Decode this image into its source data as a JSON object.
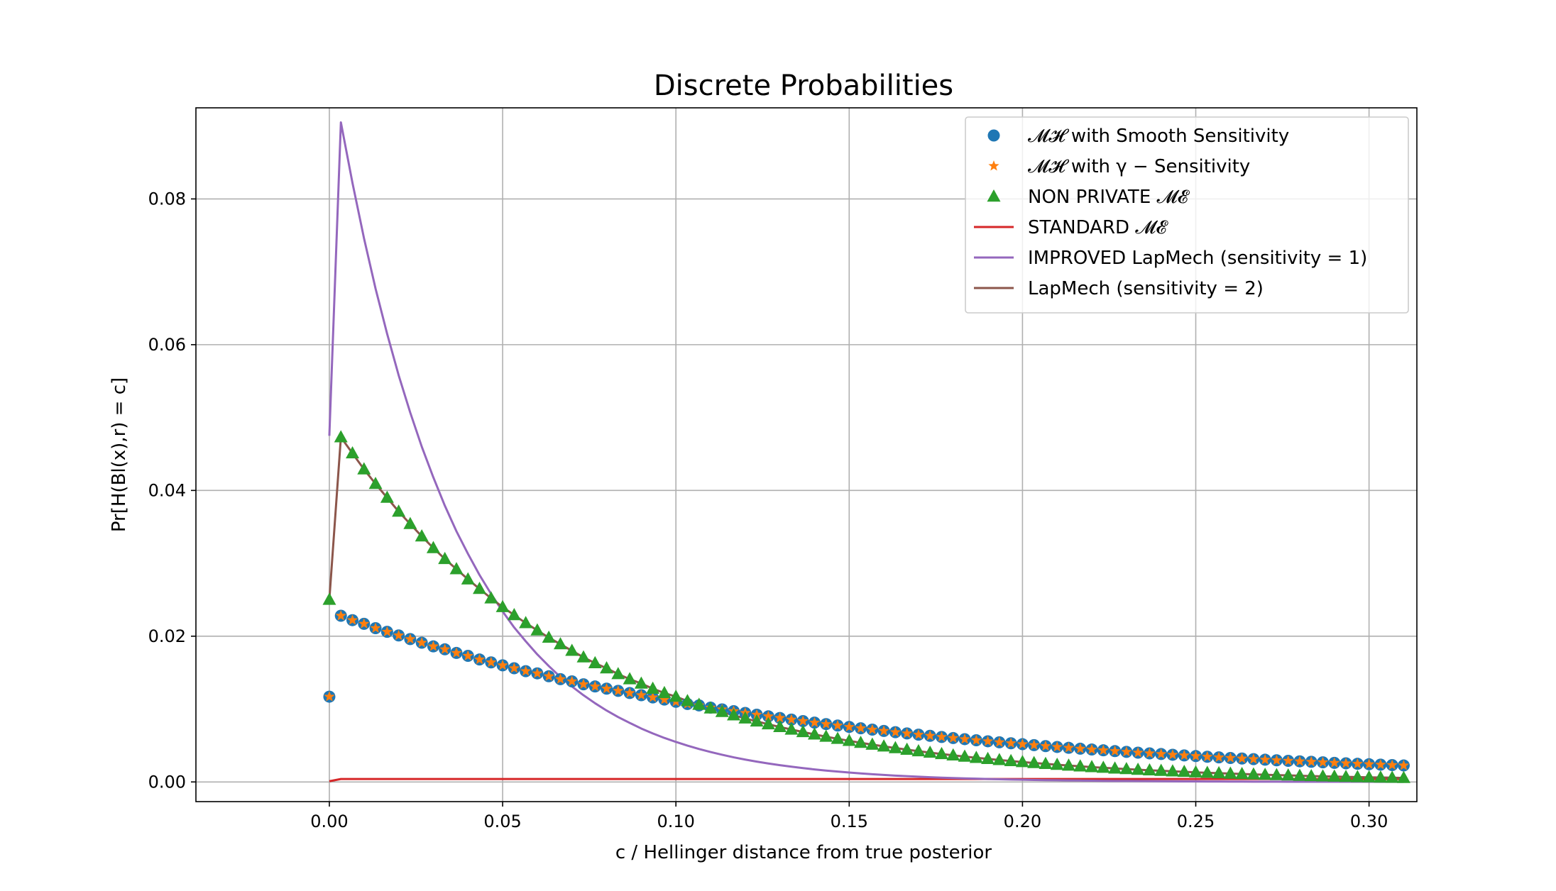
{
  "chart_data": {
    "type": "line",
    "title": "Discrete Probabilities",
    "xlabel": "c / Hellinger distance from true posterior",
    "ylabel": "Pr[H(Bl(x),r) = c]",
    "xlim": [
      -0.0385,
      0.3138
    ],
    "ylim": [
      -0.0027,
      0.0925
    ],
    "xticks": [
      0.0,
      0.05,
      0.1,
      0.15,
      0.2,
      0.25,
      0.3
    ],
    "xtick_labels": [
      "0.00",
      "0.05",
      "0.10",
      "0.15",
      "0.20",
      "0.25",
      "0.30"
    ],
    "yticks": [
      0.0,
      0.02,
      0.04,
      0.06,
      0.08
    ],
    "ytick_labels": [
      "0.00",
      "0.02",
      "0.04",
      "0.06",
      "0.08"
    ],
    "grid": true,
    "legend_position": "top-right",
    "series": [
      {
        "name": "𝓜𝓗 with Smooth Sensitivity",
        "marker": "circle",
        "color": "#1f77b4",
        "x": [
          0.0,
          0.00333,
          0.00667,
          0.01,
          0.01333,
          0.01667,
          0.02,
          0.02333,
          0.02667,
          0.03,
          0.03333,
          0.03667,
          0.04,
          0.04333,
          0.04667,
          0.05,
          0.05333,
          0.05667,
          0.06,
          0.06333,
          0.06667,
          0.07,
          0.07333,
          0.07667,
          0.08,
          0.08333,
          0.08667,
          0.09,
          0.09333,
          0.09667,
          0.1,
          0.10333,
          0.10667,
          0.11,
          0.11333,
          0.11667,
          0.12,
          0.12333,
          0.12667,
          0.13,
          0.13333,
          0.13667,
          0.14,
          0.14333,
          0.14667,
          0.15,
          0.15333,
          0.15667,
          0.16,
          0.16333,
          0.16667,
          0.17,
          0.17333,
          0.17667,
          0.18,
          0.18333,
          0.18667,
          0.19,
          0.19333,
          0.19667,
          0.2,
          0.20333,
          0.20667,
          0.21,
          0.21333,
          0.21667,
          0.22,
          0.22333,
          0.22667,
          0.23,
          0.23333,
          0.23667,
          0.24,
          0.24333,
          0.24667,
          0.25,
          0.25333,
          0.25667,
          0.26,
          0.26333,
          0.26667,
          0.27,
          0.27333,
          0.27667,
          0.28,
          0.28333,
          0.28667,
          0.29,
          0.29333,
          0.29667,
          0.3,
          0.30333,
          0.30667,
          0.31
        ],
        "y": [
          0.0117,
          0.0228,
          0.0222,
          0.0217,
          0.0211,
          0.0206,
          0.0201,
          0.0196,
          0.0191,
          0.0186,
          0.0182,
          0.0177,
          0.0173,
          0.0168,
          0.0164,
          0.016,
          0.0156,
          0.0152,
          0.0149,
          0.0145,
          0.0141,
          0.0138,
          0.0134,
          0.0131,
          0.0128,
          0.0125,
          0.0122,
          0.0119,
          0.0116,
          0.0113,
          0.011,
          0.0107,
          0.0105,
          0.0102,
          0.00996,
          0.00971,
          0.00947,
          0.00923,
          0.009,
          0.00878,
          0.00856,
          0.00835,
          0.00814,
          0.00794,
          0.00774,
          0.00755,
          0.00736,
          0.00718,
          0.007,
          0.00683,
          0.00666,
          0.00649,
          0.00633,
          0.00617,
          0.00602,
          0.00587,
          0.00572,
          0.00558,
          0.00544,
          0.00531,
          0.00518,
          0.00505,
          0.00492,
          0.0048,
          0.00468,
          0.00456,
          0.00445,
          0.00434,
          0.00423,
          0.00413,
          0.00402,
          0.00392,
          0.00383,
          0.00373,
          0.00364,
          0.00355,
          0.00346,
          0.00337,
          0.00329,
          0.00321,
          0.00313,
          0.00305,
          0.00297,
          0.0029,
          0.00283,
          0.00276,
          0.00269,
          0.00262,
          0.00256,
          0.00249,
          0.00243,
          0.00237,
          0.00231,
          0.00226
        ]
      },
      {
        "name": "𝓜𝓗 with γ − Sensitivity",
        "marker": "star",
        "color": "#ff7f0e",
        "x": [
          0.0,
          0.00333,
          0.00667,
          0.01,
          0.01333,
          0.01667,
          0.02,
          0.02333,
          0.02667,
          0.03,
          0.03333,
          0.03667,
          0.04,
          0.04333,
          0.04667,
          0.05,
          0.05333,
          0.05667,
          0.06,
          0.06333,
          0.06667,
          0.07,
          0.07333,
          0.07667,
          0.08,
          0.08333,
          0.08667,
          0.09,
          0.09333,
          0.09667,
          0.1,
          0.10333,
          0.10667,
          0.11,
          0.11333,
          0.11667,
          0.12,
          0.12333,
          0.12667,
          0.13,
          0.13333,
          0.13667,
          0.14,
          0.14333,
          0.14667,
          0.15,
          0.15333,
          0.15667,
          0.16,
          0.16333,
          0.16667,
          0.17,
          0.17333,
          0.17667,
          0.18,
          0.18333,
          0.18667,
          0.19,
          0.19333,
          0.19667,
          0.2,
          0.20333,
          0.20667,
          0.21,
          0.21333,
          0.21667,
          0.22,
          0.22333,
          0.22667,
          0.23,
          0.23333,
          0.23667,
          0.24,
          0.24333,
          0.24667,
          0.25,
          0.25333,
          0.25667,
          0.26,
          0.26333,
          0.26667,
          0.27,
          0.27333,
          0.27667,
          0.28,
          0.28333,
          0.28667,
          0.29,
          0.29333,
          0.29667,
          0.3,
          0.30333,
          0.30667,
          0.31
        ],
        "y": [
          0.0117,
          0.0228,
          0.0222,
          0.0217,
          0.0211,
          0.0206,
          0.0201,
          0.0196,
          0.0191,
          0.0186,
          0.0182,
          0.0177,
          0.0173,
          0.0168,
          0.0164,
          0.016,
          0.0156,
          0.0152,
          0.0149,
          0.0145,
          0.0141,
          0.0138,
          0.0134,
          0.0131,
          0.0128,
          0.0125,
          0.0122,
          0.0119,
          0.0116,
          0.0113,
          0.011,
          0.0107,
          0.0105,
          0.0102,
          0.00996,
          0.00971,
          0.00947,
          0.00923,
          0.009,
          0.00878,
          0.00856,
          0.00835,
          0.00814,
          0.00794,
          0.00774,
          0.00755,
          0.00736,
          0.00718,
          0.007,
          0.00683,
          0.00666,
          0.00649,
          0.00633,
          0.00617,
          0.00602,
          0.00587,
          0.00572,
          0.00558,
          0.00544,
          0.00531,
          0.00518,
          0.00505,
          0.00492,
          0.0048,
          0.00468,
          0.00456,
          0.00445,
          0.00434,
          0.00423,
          0.00413,
          0.00402,
          0.00392,
          0.00383,
          0.00373,
          0.00364,
          0.00355,
          0.00346,
          0.00337,
          0.00329,
          0.00321,
          0.00313,
          0.00305,
          0.00297,
          0.0029,
          0.00283,
          0.00276,
          0.00269,
          0.00262,
          0.00256,
          0.00249,
          0.00243,
          0.00237,
          0.00231,
          0.00226
        ]
      },
      {
        "name": "NON PRIVATE 𝓜𝓔",
        "marker": "triangle",
        "color": "#2ca02c",
        "x": [
          0.0,
          0.00333,
          0.00667,
          0.01,
          0.01333,
          0.01667,
          0.02,
          0.02333,
          0.02667,
          0.03,
          0.03333,
          0.03667,
          0.04,
          0.04333,
          0.04667,
          0.05,
          0.05333,
          0.05667,
          0.06,
          0.06333,
          0.06667,
          0.07,
          0.07333,
          0.07667,
          0.08,
          0.08333,
          0.08667,
          0.09,
          0.09333,
          0.09667,
          0.1,
          0.10333,
          0.10667,
          0.11,
          0.11333,
          0.11667,
          0.12,
          0.12333,
          0.12667,
          0.13,
          0.13333,
          0.13667,
          0.14,
          0.14333,
          0.14667,
          0.15,
          0.15333,
          0.15667,
          0.16,
          0.16333,
          0.16667,
          0.17,
          0.17333,
          0.17667,
          0.18,
          0.18333,
          0.18667,
          0.19,
          0.19333,
          0.19667,
          0.2,
          0.20333,
          0.20667,
          0.21,
          0.21333,
          0.21667,
          0.22,
          0.22333,
          0.22667,
          0.23,
          0.23333,
          0.23667,
          0.24,
          0.24333,
          0.24667,
          0.25,
          0.25333,
          0.25667,
          0.26,
          0.26333,
          0.26667,
          0.27,
          0.27333,
          0.27667,
          0.28,
          0.28333,
          0.28667,
          0.29,
          0.29333,
          0.29667,
          0.3,
          0.30333,
          0.30667,
          0.31
        ],
        "y": [
          0.025,
          0.0473,
          0.0451,
          0.0429,
          0.0409,
          0.039,
          0.0371,
          0.0354,
          0.0337,
          0.0321,
          0.0306,
          0.0292,
          0.0278,
          0.0265,
          0.0252,
          0.024,
          0.0229,
          0.0218,
          0.0208,
          0.0198,
          0.0189,
          0.018,
          0.0171,
          0.0163,
          0.0156,
          0.0148,
          0.0141,
          0.0135,
          0.0128,
          0.0122,
          0.0117,
          0.0111,
          0.0106,
          0.0101,
          0.00961,
          0.00915,
          0.00872,
          0.00831,
          0.00792,
          0.00754,
          0.00719,
          0.00685,
          0.00652,
          0.00621,
          0.00592,
          0.00564,
          0.00537,
          0.00512,
          0.00488,
          0.00465,
          0.00443,
          0.00422,
          0.00402,
          0.00383,
          0.00365,
          0.00348,
          0.00331,
          0.00316,
          0.00301,
          0.00287,
          0.00273,
          0.0026,
          0.00248,
          0.00236,
          0.00225,
          0.00214,
          0.00204,
          0.00195,
          0.00185,
          0.00177,
          0.00168,
          0.0016,
          0.00153,
          0.00146,
          0.00139,
          0.00132,
          0.00126,
          0.0012,
          0.00114,
          0.00109,
          0.00104,
          0.00099,
          0.00094,
          0.0009,
          0.00085,
          0.00081,
          0.00077,
          0.00074,
          0.0007,
          0.00067,
          0.00064,
          0.00061,
          0.00058,
          0.00055
        ]
      },
      {
        "name": "STANDARD 𝓜𝓔",
        "marker": "line",
        "color": "#d62728",
        "x": [
          0.0,
          0.00333,
          0.31
        ],
        "y": [
          0.0001,
          0.0004,
          0.0004
        ]
      },
      {
        "name": "IMPROVED LapMech (sensitivity = 1)",
        "marker": "line",
        "color": "#9467bd",
        "x": [
          0.0,
          0.00333,
          0.00667,
          0.01,
          0.01333,
          0.01667,
          0.02,
          0.02333,
          0.02667,
          0.03,
          0.03333,
          0.03667,
          0.04,
          0.04333,
          0.04667,
          0.05,
          0.05333,
          0.05667,
          0.06,
          0.06333,
          0.06667,
          0.07,
          0.07333,
          0.07667,
          0.08,
          0.08333,
          0.08667,
          0.09,
          0.09333,
          0.09667,
          0.1,
          0.10333,
          0.10667,
          0.11,
          0.11333,
          0.11667,
          0.12,
          0.12333,
          0.12667,
          0.13,
          0.13333,
          0.13667,
          0.14,
          0.14333,
          0.14667,
          0.15,
          0.15333,
          0.15667,
          0.16,
          0.16333,
          0.16667,
          0.17,
          0.17333,
          0.17667,
          0.18,
          0.18333,
          0.18667,
          0.19,
          0.19333,
          0.19667,
          0.2,
          0.20333,
          0.20667,
          0.21,
          0.21333,
          0.21667,
          0.22,
          0.22333,
          0.22667,
          0.23,
          0.23333,
          0.23667,
          0.24,
          0.24333,
          0.24667,
          0.25,
          0.25333,
          0.25667,
          0.26,
          0.26333,
          0.26667,
          0.27,
          0.27333,
          0.27667,
          0.28,
          0.28333,
          0.28667,
          0.29,
          0.29333,
          0.29667,
          0.3,
          0.30333,
          0.30667,
          0.31
        ],
        "y": [
          0.0475,
          0.0905,
          0.0822,
          0.0746,
          0.0677,
          0.0615,
          0.0558,
          0.0507,
          0.046,
          0.0418,
          0.0379,
          0.0344,
          0.0313,
          0.0284,
          0.0258,
          0.0234,
          0.0212,
          0.0193,
          0.0175,
          0.0159,
          0.0144,
          0.0131,
          0.0119,
          0.0108,
          0.0098,
          0.0089,
          0.0081,
          0.00733,
          0.00666,
          0.00604,
          0.00549,
          0.00498,
          0.00452,
          0.00411,
          0.00373,
          0.00338,
          0.00307,
          0.00279,
          0.00253,
          0.0023,
          0.00209,
          0.0019,
          0.00172,
          0.00156,
          0.00142,
          0.00129,
          0.00117,
          0.00106,
          0.00096,
          0.00087,
          0.00079,
          0.00072,
          0.00065,
          0.00059,
          0.00054,
          0.00049,
          0.00045,
          0.0004,
          0.00037,
          0.00033,
          0.0003,
          0.00027,
          0.00025,
          0.00023,
          0.00021,
          0.00019,
          0.00017,
          0.00015,
          0.00014,
          0.00013,
          0.00012,
          0.00011,
          0.0001,
          9e-05,
          8e-05,
          7e-05,
          6e-05,
          6e-05,
          5e-05,
          5e-05,
          4e-05,
          4e-05,
          4e-05,
          3e-05,
          3e-05,
          3e-05,
          2e-05,
          2e-05,
          2e-05,
          2e-05,
          2e-05,
          1e-05,
          1e-05,
          1e-05
        ]
      },
      {
        "name": "LapMech (sensitivity = 2)",
        "marker": "line",
        "color": "#8c564b",
        "x": [
          0.0,
          0.00333,
          0.00667,
          0.01,
          0.01333,
          0.01667,
          0.02,
          0.02333,
          0.02667,
          0.03,
          0.03333,
          0.03667,
          0.04,
          0.04333,
          0.04667,
          0.05,
          0.05333,
          0.05667,
          0.06,
          0.06333,
          0.06667,
          0.07,
          0.07333,
          0.07667,
          0.08,
          0.08333,
          0.08667,
          0.09,
          0.09333,
          0.09667,
          0.1,
          0.10333,
          0.10667,
          0.11,
          0.11333,
          0.11667,
          0.12,
          0.12333,
          0.12667,
          0.13,
          0.13333,
          0.13667,
          0.14,
          0.14333,
          0.14667,
          0.15,
          0.15333,
          0.15667,
          0.16,
          0.16333,
          0.16667,
          0.17,
          0.17333,
          0.17667,
          0.18,
          0.18333,
          0.18667,
          0.19,
          0.19333,
          0.19667,
          0.2,
          0.20333,
          0.20667,
          0.21,
          0.21333,
          0.21667,
          0.22,
          0.22333,
          0.22667,
          0.23,
          0.23333,
          0.23667,
          0.24,
          0.24333,
          0.24667,
          0.25,
          0.25333,
          0.25667,
          0.26,
          0.26333,
          0.26667,
          0.27,
          0.27333,
          0.27667,
          0.28,
          0.28333,
          0.28667,
          0.29,
          0.29333,
          0.29667,
          0.3,
          0.30333,
          0.30667,
          0.31
        ],
        "y": [
          0.025,
          0.0473,
          0.0451,
          0.0429,
          0.0409,
          0.039,
          0.0371,
          0.0354,
          0.0337,
          0.0321,
          0.0306,
          0.0292,
          0.0278,
          0.0265,
          0.0252,
          0.024,
          0.0229,
          0.0218,
          0.0208,
          0.0198,
          0.0189,
          0.018,
          0.0171,
          0.0163,
          0.0156,
          0.0148,
          0.0141,
          0.0135,
          0.0128,
          0.0122,
          0.0117,
          0.0111,
          0.0106,
          0.0101,
          0.00961,
          0.00915,
          0.00872,
          0.00831,
          0.00792,
          0.00754,
          0.00719,
          0.00685,
          0.00652,
          0.00621,
          0.00592,
          0.00564,
          0.00537,
          0.00512,
          0.00488,
          0.00465,
          0.00443,
          0.00422,
          0.00402,
          0.00383,
          0.00365,
          0.00348,
          0.00331,
          0.00316,
          0.00301,
          0.00287,
          0.00273,
          0.0026,
          0.00248,
          0.00236,
          0.00225,
          0.00214,
          0.00204,
          0.00195,
          0.00185,
          0.00177,
          0.00168,
          0.0016,
          0.00153,
          0.00146,
          0.00139,
          0.00132,
          0.00126,
          0.0012,
          0.00114,
          0.00109,
          0.00104,
          0.00099,
          0.00094,
          0.0009,
          0.00085,
          0.00081,
          0.00077,
          0.00074,
          0.0007,
          0.00067,
          0.00064,
          0.00061,
          0.00058,
          0.00055
        ]
      }
    ]
  }
}
